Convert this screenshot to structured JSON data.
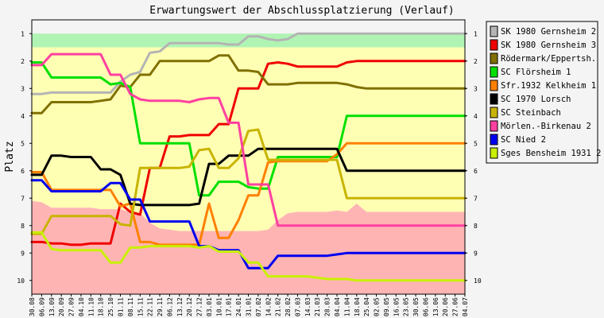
{
  "chart_data": {
    "type": "line",
    "title": "Erwartungswert der Abschlussplatzierung (Verlauf)",
    "ylabel": "Platz",
    "ylim": [
      1,
      10
    ],
    "yticks": [
      "1",
      "2",
      "3",
      "4",
      "5",
      "6",
      "7",
      "8",
      "9",
      "10"
    ],
    "x": [
      "30.08",
      "06.09",
      "13.09",
      "20.09",
      "27.09",
      "04.10",
      "11.10",
      "18.10",
      "25.10",
      "01.11",
      "08.11",
      "15.11",
      "22.11",
      "29.11",
      "06.12",
      "13.12",
      "20.12",
      "27.12",
      "03.01",
      "10.01",
      "17.01",
      "24.01",
      "31.01",
      "07.02",
      "14.02",
      "21.02",
      "28.02",
      "07.03",
      "14.03",
      "21.03",
      "28.03",
      "04.04",
      "11.04",
      "18.04",
      "25.04",
      "02.05",
      "09.05",
      "16.05",
      "23.05",
      "30.05",
      "06.06",
      "13.06",
      "20.06",
      "27.06",
      "04.07"
    ],
    "bands": {
      "green": {
        "color": "#b0f4b4",
        "top": [
          1,
          1,
          1,
          1,
          1,
          1,
          1,
          1,
          1,
          1,
          1,
          1,
          1,
          1,
          1,
          1,
          1,
          1,
          1,
          1,
          1,
          1,
          1,
          1,
          1,
          1,
          1,
          1,
          1,
          1,
          1,
          1,
          1,
          1,
          1,
          1,
          1,
          1,
          1,
          1,
          1,
          1,
          1,
          1,
          1
        ],
        "bottom": [
          1.5,
          1.5,
          1.5,
          1.5,
          1.5,
          1.5,
          1.5,
          1.5,
          1.5,
          1.5,
          1.5,
          1.5,
          1.5,
          1.5,
          1.5,
          1.5,
          1.5,
          1.5,
          1.5,
          1.5,
          1.5,
          1.5,
          1.5,
          1.5,
          1.5,
          1.5,
          1.5,
          1.5,
          1.5,
          1.5,
          1.5,
          1.5,
          1.5,
          1.5,
          1.5,
          1.5,
          1.5,
          1.5,
          1.5,
          1.5,
          1.5,
          1.5,
          1.5,
          1.5,
          1.5
        ]
      },
      "yellow": {
        "color": "#ffffb4",
        "top": [
          1.5,
          1.5,
          1.5,
          1.5,
          1.5,
          1.5,
          1.5,
          1.5,
          1.5,
          1.5,
          1.5,
          1.5,
          1.5,
          1.5,
          1.5,
          1.5,
          1.5,
          1.5,
          1.5,
          1.5,
          1.5,
          1.5,
          1.5,
          1.5,
          1.5,
          1.5,
          1.5,
          1.5,
          1.5,
          1.5,
          1.5,
          1.5,
          1.5,
          1.5,
          1.5,
          1.5,
          1.5,
          1.5,
          1.5,
          1.5,
          1.5,
          1.5,
          1.5,
          1.5,
          1.5
        ],
        "bottom": [
          7.1,
          7.15,
          7.35,
          7.35,
          7.35,
          7.35,
          7.35,
          7.4,
          7.4,
          7.4,
          7.5,
          7.55,
          7.9,
          8.1,
          8.15,
          8.2,
          8.2,
          8.2,
          8.2,
          8.2,
          8.2,
          8.2,
          8.2,
          8.2,
          8.15,
          7.8,
          7.55,
          7.5,
          7.5,
          7.5,
          7.5,
          7.45,
          7.5,
          7.2,
          7.5,
          7.5,
          7.5,
          7.5,
          7.5,
          7.5,
          7.5,
          7.5,
          7.5,
          7.5,
          7.5
        ]
      },
      "red": {
        "color": "#ffb4b4",
        "top": [
          7.1,
          7.15,
          7.35,
          7.35,
          7.35,
          7.35,
          7.35,
          7.4,
          7.4,
          7.4,
          7.5,
          7.55,
          7.9,
          8.1,
          8.15,
          8.2,
          8.2,
          8.2,
          8.2,
          8.2,
          8.2,
          8.2,
          8.2,
          8.2,
          8.15,
          7.8,
          7.55,
          7.5,
          7.5,
          7.5,
          7.5,
          7.45,
          7.5,
          7.2,
          7.5,
          7.5,
          7.5,
          7.5,
          7.5,
          7.5,
          7.5,
          7.5,
          7.5,
          7.5,
          7.5
        ],
        "bottom": [
          10.5,
          10.5,
          10.5,
          10.5,
          10.5,
          10.5,
          10.5,
          10.5,
          10.5,
          10.5,
          10.5,
          10.5,
          10.5,
          10.5,
          10.5,
          10.5,
          10.5,
          10.5,
          10.5,
          10.5,
          10.5,
          10.5,
          10.5,
          10.5,
          10.5,
          10.5,
          10.5,
          10.5,
          10.5,
          10.5,
          10.5,
          10.5,
          10.5,
          10.5,
          10.5,
          10.5,
          10.5,
          10.5,
          10.5,
          10.5,
          10.5,
          10.5,
          10.5,
          10.5,
          10.5
        ]
      }
    },
    "series": [
      {
        "name": "SK 1980 Gernsheim 2",
        "color": "#b4b4b4",
        "values": [
          3.2,
          3.2,
          3.15,
          3.15,
          3.15,
          3.15,
          3.15,
          3.15,
          3.15,
          2.75,
          2.5,
          2.4,
          1.7,
          1.65,
          1.35,
          1.35,
          1.35,
          1.35,
          1.35,
          1.35,
          1.4,
          1.4,
          1.1,
          1.1,
          1.2,
          1.25,
          1.2,
          1,
          1,
          1,
          1,
          1,
          1,
          1,
          1,
          1,
          1,
          1,
          1,
          1,
          1,
          1,
          1,
          1,
          1
        ]
      },
      {
        "name": "SK 1980 Gernsheim 3",
        "color": "#f00000",
        "values": [
          8.6,
          8.6,
          8.65,
          8.65,
          8.7,
          8.7,
          8.65,
          8.65,
          8.65,
          7.2,
          7.5,
          7.6,
          5.9,
          5.9,
          4.75,
          4.75,
          4.7,
          4.7,
          4.7,
          4.3,
          4.3,
          3,
          3,
          3,
          2.1,
          2.05,
          2.1,
          2.2,
          2.2,
          2.2,
          2.2,
          2.2,
          2.05,
          2,
          2,
          2,
          2,
          2,
          2,
          2,
          2,
          2,
          2,
          2,
          2
        ]
      },
      {
        "name": "Rödermark/Eppertsh.",
        "color": "#807000",
        "values": [
          3.9,
          3.9,
          3.5,
          3.5,
          3.5,
          3.5,
          3.5,
          3.45,
          3.4,
          2.9,
          2.95,
          2.5,
          2.5,
          2,
          2,
          2,
          2,
          2,
          2,
          1.8,
          1.8,
          2.35,
          2.35,
          2.4,
          2.85,
          2.85,
          2.85,
          2.8,
          2.8,
          2.8,
          2.8,
          2.8,
          2.85,
          2.95,
          3,
          3,
          3,
          3,
          3,
          3,
          3,
          3,
          3,
          3,
          3
        ]
      },
      {
        "name": "SC Flörsheim 1",
        "color": "#00e000",
        "values": [
          2.05,
          2.05,
          2.6,
          2.6,
          2.6,
          2.6,
          2.6,
          2.6,
          2.85,
          2.8,
          2.95,
          5,
          5,
          5,
          5,
          5,
          5,
          6.9,
          6.9,
          6.4,
          6.4,
          6.4,
          6.6,
          6.65,
          6.65,
          5.5,
          5.5,
          5.5,
          5.5,
          5.5,
          5.5,
          5.5,
          4,
          4,
          4,
          4,
          4,
          4,
          4,
          4,
          4,
          4,
          4,
          4,
          4
        ]
      },
      {
        "name": "Sfr.1932 Kelkheim 1",
        "color": "#ff8000",
        "values": [
          6.05,
          6.05,
          6.7,
          6.7,
          6.7,
          6.7,
          6.7,
          6.7,
          6.7,
          7.3,
          7.2,
          8.6,
          8.6,
          8.7,
          8.7,
          8.7,
          8.7,
          8.7,
          7.2,
          8.45,
          8.45,
          7.8,
          6.9,
          6.9,
          5.7,
          5.65,
          5.65,
          5.65,
          5.65,
          5.65,
          5.65,
          5.4,
          5,
          5,
          5,
          5,
          5,
          5,
          5,
          5,
          5,
          5,
          5,
          5,
          5
        ]
      },
      {
        "name": "SC 1970 Lorsch",
        "color": "#000000",
        "values": [
          6.15,
          6.15,
          5.45,
          5.45,
          5.5,
          5.5,
          5.5,
          5.95,
          5.95,
          6.15,
          7.2,
          7.25,
          7.25,
          7.25,
          7.25,
          7.25,
          7.25,
          7.2,
          5.75,
          5.75,
          5.45,
          5.45,
          5.45,
          5.2,
          5.2,
          5.2,
          5.2,
          5.2,
          5.2,
          5.2,
          5.2,
          5.2,
          6,
          6,
          6,
          6,
          6,
          6,
          6,
          6,
          6,
          6,
          6,
          6,
          6
        ]
      },
      {
        "name": "SC Steinbach",
        "color": "#c8b400",
        "values": [
          8.3,
          8.3,
          7.65,
          7.65,
          7.65,
          7.65,
          7.65,
          7.65,
          7.65,
          7.95,
          8,
          5.9,
          5.9,
          5.9,
          5.9,
          5.9,
          5.85,
          5.25,
          5.2,
          5.9,
          5.9,
          5.55,
          4.55,
          4.5,
          5.6,
          5.6,
          5.6,
          5.6,
          5.6,
          5.6,
          5.6,
          5.6,
          7,
          7,
          7,
          7,
          7,
          7,
          7,
          7,
          7,
          7,
          7,
          7,
          7
        ]
      },
      {
        "name": "Mörlen.-Birkenau 2",
        "color": "#ff40a0",
        "values": [
          2.15,
          2.15,
          1.75,
          1.75,
          1.75,
          1.75,
          1.75,
          1.75,
          2.5,
          2.5,
          3.2,
          3.4,
          3.45,
          3.45,
          3.45,
          3.45,
          3.5,
          3.4,
          3.35,
          3.35,
          4.25,
          4.25,
          6.5,
          6.5,
          6.5,
          8,
          8,
          8,
          8,
          8,
          8,
          8,
          8,
          8,
          8,
          8,
          8,
          8,
          8,
          8,
          8,
          8,
          8,
          8,
          8
        ]
      },
      {
        "name": "SC Nied 2",
        "color": "#0000f0",
        "values": [
          6.35,
          6.35,
          6.75,
          6.75,
          6.75,
          6.75,
          6.75,
          6.75,
          6.45,
          6.45,
          7.05,
          7.05,
          7.85,
          7.85,
          7.85,
          7.85,
          7.85,
          8.75,
          8.75,
          8.9,
          8.9,
          8.9,
          9.55,
          9.55,
          9.55,
          9.1,
          9.1,
          9.1,
          9.1,
          9.1,
          9.1,
          9.05,
          9,
          9,
          9,
          9,
          9,
          9,
          9,
          9,
          9,
          9,
          9,
          9,
          9
        ]
      },
      {
        "name": "Sges Bensheim 1931 2",
        "color": "#c8f000",
        "values": [
          8.25,
          8.25,
          8.85,
          8.9,
          8.9,
          8.9,
          8.9,
          8.9,
          9.35,
          9.35,
          8.8,
          8.8,
          8.75,
          8.75,
          8.75,
          8.75,
          8.75,
          8.8,
          8.75,
          8.95,
          8.95,
          8.95,
          9.35,
          9.35,
          9.85,
          9.85,
          9.85,
          9.85,
          9.85,
          9.9,
          9.95,
          9.95,
          9.95,
          10,
          10,
          10,
          10,
          10,
          10,
          10,
          10,
          10,
          10,
          10,
          10
        ]
      }
    ]
  }
}
